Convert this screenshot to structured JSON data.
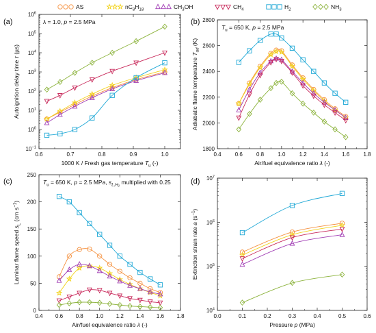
{
  "legend": [
    {
      "name": "AS",
      "color": "#f5913f",
      "marker": "circle"
    },
    {
      "name": "nC8H18",
      "color": "#f2d21b",
      "marker": "star"
    },
    {
      "name": "CH3OH",
      "color": "#a03cb4",
      "marker": "triangle-up"
    },
    {
      "name": "CH4",
      "color": "#c8285a",
      "marker": "triangle-down"
    },
    {
      "name": "H2",
      "color": "#1fa8d6",
      "marker": "square"
    },
    {
      "name": "NH3",
      "color": "#8cb33c",
      "marker": "diamond"
    }
  ],
  "chart_data": [
    {
      "panel": "(a)",
      "type": "line",
      "annotation": "λ = 1.0, p = 2.5 MPa",
      "xlabel": "1000 K / Fresh gas temperature T_u (-)",
      "ylabel": "Autoignition delay time τ (µs)",
      "xlim": [
        0.6,
        1.05
      ],
      "ylim": [
        0.1,
        1000000
      ],
      "yscale": "log",
      "xticks": [
        "0.6",
        "0.7",
        "0.8",
        "0.9",
        "1.0"
      ],
      "yticks": [
        "10^-1",
        "10^0",
        "10^1",
        "10^2",
        "10^3",
        "10^4",
        "10^5",
        "10^6"
      ],
      "x": [
        0.625,
        0.667,
        0.714,
        0.769,
        0.833,
        0.909,
        1.0
      ],
      "series": [
        {
          "name": "AS",
          "values": [
            3.5,
            8,
            20,
            55,
            150,
            400,
            1000
          ]
        },
        {
          "name": "nC8H18",
          "values": [
            3.5,
            9,
            25,
            70,
            200,
            500,
            1300
          ]
        },
        {
          "name": "CH3OH",
          "values": [
            2.2,
            6,
            16,
            45,
            130,
            350,
            900
          ]
        },
        {
          "name": "CH4",
          "values": [
            30,
            60,
            150,
            400,
            1100,
            3000,
            10000
          ]
        },
        {
          "name": "H2",
          "values": [
            0.5,
            0.6,
            1.0,
            4,
            60,
            500,
            3000
          ]
        },
        {
          "name": "NH3",
          "values": [
            120,
            300,
            900,
            3000,
            10000,
            40000,
            230000
          ]
        }
      ]
    },
    {
      "panel": "(b)",
      "type": "line",
      "annotation": "T_u = 650 K, p = 2.5 MPa",
      "xlabel": "Air/fuel equivalence ratio λ (-)",
      "ylabel": "Adiabatic flame temperature T_ad (K)",
      "xlim": [
        0.4,
        1.8
      ],
      "ylim": [
        1800,
        2800
      ],
      "yscale": "linear",
      "xticks": [
        "0.4",
        "0.6",
        "0.8",
        "1.0",
        "1.2",
        "1.4",
        "1.6",
        "1.8"
      ],
      "yticks": [
        "1800",
        "2000",
        "2200",
        "2400",
        "2600",
        "2800"
      ],
      "x": [
        0.6,
        0.7,
        0.8,
        0.9,
        0.95,
        1.0,
        1.1,
        1.2,
        1.3,
        1.4,
        1.5,
        1.6
      ],
      "series": [
        {
          "name": "AS",
          "values": [
            2150,
            2310,
            2440,
            2540,
            2565,
            2560,
            2450,
            2350,
            2260,
            2180,
            2110,
            2050
          ]
        },
        {
          "name": "nC8H18",
          "values": [
            2150,
            2300,
            2430,
            2530,
            2555,
            2550,
            2440,
            2340,
            2250,
            2170,
            2100,
            2040
          ]
        },
        {
          "name": "CH3OH",
          "values": [
            2100,
            2260,
            2390,
            2480,
            2500,
            2490,
            2400,
            2310,
            2230,
            2160,
            2100,
            2040
          ]
        },
        {
          "name": "CH4",
          "values": [
            2040,
            2220,
            2370,
            2470,
            2495,
            2480,
            2390,
            2290,
            2210,
            2140,
            2080,
            2020
          ]
        },
        {
          "name": "H2",
          "values": [
            2470,
            2560,
            2640,
            2690,
            2690,
            2660,
            2580,
            2490,
            2400,
            2310,
            2230,
            2160
          ]
        },
        {
          "name": "NH3",
          "values": [
            1950,
            2070,
            2180,
            2270,
            2310,
            2320,
            2230,
            2150,
            2080,
            2010,
            1950,
            1890
          ]
        }
      ]
    },
    {
      "panel": "(c)",
      "type": "line",
      "annotation": "T_u = 650 K, p = 2.5 MPa, s_L,H2 multiplied with 0.25",
      "xlabel": "Air/fuel equivalence ratio λ (-)",
      "ylabel": "Laminar flame speed s_L (cm s^-1)",
      "xlim": [
        0.4,
        1.8
      ],
      "ylim": [
        0,
        250
      ],
      "yscale": "linear",
      "xticks": [
        "0.4",
        "0.6",
        "0.8",
        "1.0",
        "1.2",
        "1.4",
        "1.6",
        "1.8"
      ],
      "yticks": [
        "0",
        "50",
        "100",
        "150",
        "200",
        "250"
      ],
      "x": [
        0.6,
        0.7,
        0.8,
        0.9,
        1.0,
        1.1,
        1.2,
        1.3,
        1.4,
        1.5,
        1.6
      ],
      "series": [
        {
          "name": "AS",
          "values": [
            62,
            100,
            112,
            113,
            100,
            85,
            72,
            60,
            50,
            40,
            33
          ]
        },
        {
          "name": "nC8H18",
          "values": [
            32,
            58,
            78,
            82,
            78,
            68,
            57,
            48,
            40,
            33,
            27
          ]
        },
        {
          "name": "CH3OH",
          "values": [
            55,
            75,
            85,
            82,
            73,
            63,
            54,
            46,
            40,
            34,
            30
          ]
        },
        {
          "name": "CH4",
          "values": [
            18,
            25,
            32,
            38,
            37,
            32,
            27,
            22,
            19,
            16,
            14
          ]
        },
        {
          "name": "H2",
          "values": [
            210,
            200,
            180,
            160,
            140,
            120,
            100,
            85,
            70,
            58,
            47
          ]
        },
        {
          "name": "NH3",
          "values": [
            10,
            13,
            15,
            15,
            14,
            12,
            10,
            8,
            7,
            6,
            5
          ]
        }
      ]
    },
    {
      "panel": "(d)",
      "type": "line",
      "annotation": "",
      "xlabel": "Pressure p (MPa)",
      "ylabel": "Extinction strain rate a (s^-1)",
      "xlim": [
        0.0,
        0.6
      ],
      "ylim": [
        10000,
        10000000
      ],
      "yscale": "log",
      "xticks": [
        "0.0",
        "0.1",
        "0.2",
        "0.3",
        "0.4",
        "0.5",
        "0.6"
      ],
      "yticks": [
        "10^4",
        "10^5",
        "10^6",
        "10^7"
      ],
      "x": [
        0.1,
        0.3,
        0.5
      ],
      "series": [
        {
          "name": "AS",
          "values": [
            210000,
            600000,
            950000
          ]
        },
        {
          "name": "nC8H18",
          "values": [
            180000,
            520000,
            850000
          ]
        },
        {
          "name": "CH3OH",
          "values": [
            110000,
            330000,
            520000
          ]
        },
        {
          "name": "CH4",
          "values": [
            150000,
            450000,
            700000
          ]
        },
        {
          "name": "H2",
          "values": [
            580000,
            2400000,
            4500000
          ]
        },
        {
          "name": "NH3",
          "values": [
            15000,
            42000,
            65000
          ]
        }
      ]
    }
  ]
}
